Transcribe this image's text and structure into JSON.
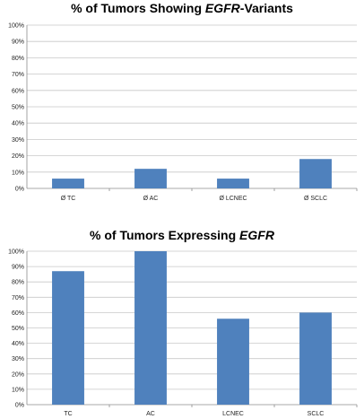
{
  "chart_data": [
    {
      "type": "bar",
      "title_parts": [
        {
          "text": "% of Tumors Showing ",
          "italic": false
        },
        {
          "text": "EGFR",
          "italic": true
        },
        {
          "text": "-Variants",
          "italic": false
        }
      ],
      "categories": [
        "Ø TC",
        "Ø AC",
        "Ø LCNEC",
        "Ø SCLC"
      ],
      "values": [
        6,
        12,
        6,
        18
      ],
      "unit": "%",
      "ylim": [
        0,
        100
      ],
      "yticks": [
        "0%",
        "10%",
        "20%",
        "30%",
        "40%",
        "50%",
        "60%",
        "70%",
        "80%",
        "90%",
        "100%"
      ],
      "grid": true,
      "legend": "none",
      "bar_color": "#4f81bd"
    },
    {
      "type": "bar",
      "title_parts": [
        {
          "text": "% of Tumors Expressing ",
          "italic": false
        },
        {
          "text": "EGFR",
          "italic": true
        }
      ],
      "categories": [
        "TC",
        "AC",
        "LCNEC",
        "SCLC"
      ],
      "values": [
        87,
        100,
        56,
        60
      ],
      "unit": "%",
      "ylim": [
        0,
        100
      ],
      "yticks": [
        "0%",
        "10%",
        "20%",
        "30%",
        "40%",
        "50%",
        "60%",
        "70%",
        "80%",
        "90%",
        "100%"
      ],
      "grid": true,
      "legend": "none",
      "bar_color": "#4f81bd"
    }
  ]
}
